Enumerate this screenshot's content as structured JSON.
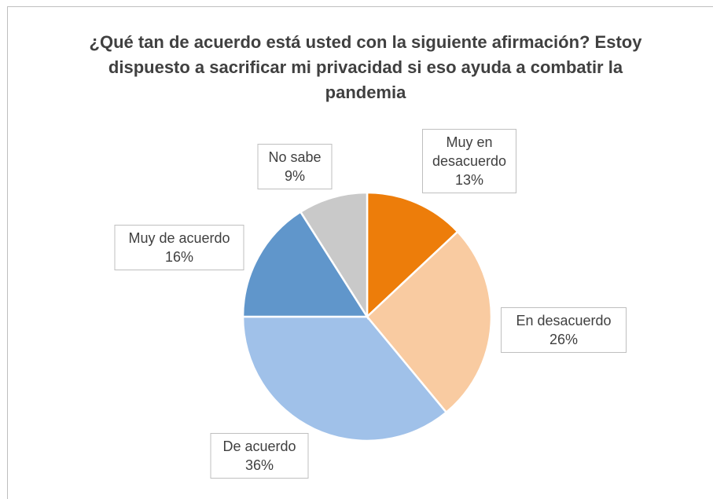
{
  "chart_data": {
    "type": "pie",
    "title": "¿Qué tan de acuerdo está usted con la siguiente afirmación? Estoy dispuesto a sacrificar mi privacidad si eso ayuda a combatir la pandemia",
    "categories": [
      "Muy en desacuerdo",
      "En desacuerdo",
      "De acuerdo",
      "Muy de acuerdo",
      "No sabe"
    ],
    "values": [
      13,
      26,
      36,
      16,
      9
    ],
    "value_labels": [
      "13%",
      "26%",
      "36%",
      "16%",
      "9%"
    ],
    "colors": [
      "#ed7d0a",
      "#f9cba1",
      "#a0c1e9",
      "#6096cb",
      "#c9c9c9"
    ]
  }
}
